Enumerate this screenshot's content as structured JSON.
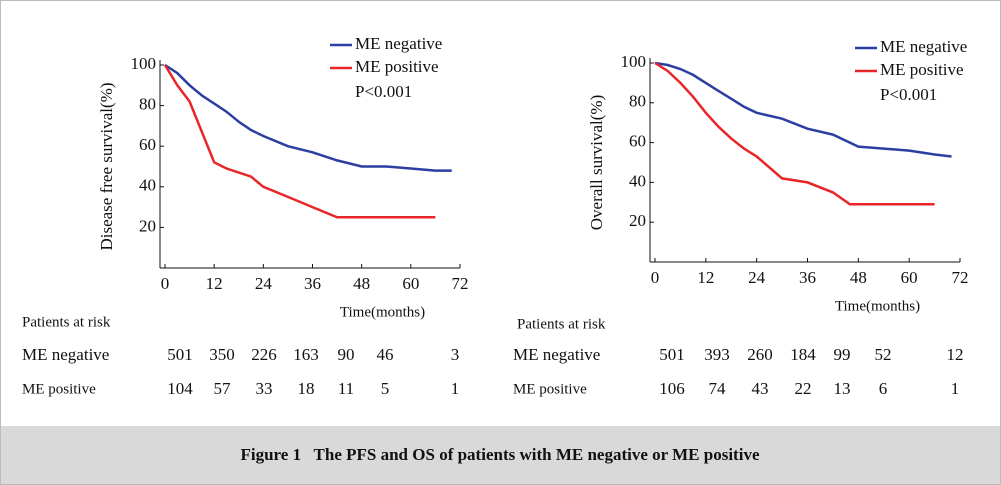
{
  "chart_data": [
    {
      "type": "line",
      "ylabel": "Disease free survival(%)",
      "xlabel": "Time(months)",
      "annotation": "P<0.001",
      "x": [
        0,
        3,
        6,
        9,
        12,
        15,
        18,
        21,
        24,
        30,
        36,
        42,
        48,
        54,
        60,
        66,
        70
      ],
      "series": [
        {
          "name": "ME negative",
          "color": "#2b3fa3",
          "values": [
            100,
            96,
            90,
            85,
            81,
            77,
            72,
            68,
            65,
            60,
            57,
            53,
            50,
            50,
            49,
            48,
            48
          ]
        },
        {
          "name": "ME positive",
          "color": "#e8262a",
          "values": [
            100,
            90,
            82,
            67,
            52,
            49,
            47,
            45,
            40,
            35,
            30,
            25,
            25,
            25,
            25,
            25,
            null
          ]
        }
      ],
      "xlim": [
        0,
        72
      ],
      "ylim": [
        0,
        100
      ],
      "xticks": [
        0,
        12,
        24,
        36,
        48,
        60,
        72
      ],
      "yticks": [
        20,
        40,
        60,
        80,
        100
      ]
    },
    {
      "type": "line",
      "ylabel": "Overall survival(%)",
      "xlabel": "Time(months)",
      "annotation": "P<0.001",
      "x": [
        0,
        3,
        6,
        9,
        12,
        15,
        18,
        21,
        24,
        30,
        36,
        42,
        46,
        48,
        54,
        60,
        66,
        70
      ],
      "series": [
        {
          "name": "ME negative",
          "color": "#2b3fa3",
          "values": [
            100,
            99,
            97,
            94,
            90,
            86,
            82,
            78,
            75,
            72,
            67,
            64,
            60,
            58,
            57,
            56,
            54,
            53
          ]
        },
        {
          "name": "ME positive",
          "color": "#e8262a",
          "values": [
            100,
            96,
            90,
            83,
            75,
            68,
            62,
            57,
            53,
            42,
            40,
            35,
            29,
            29,
            29,
            29,
            29,
            null
          ]
        }
      ],
      "xlim": [
        0,
        72
      ],
      "ylim": [
        0,
        100
      ],
      "xticks": [
        0,
        12,
        24,
        36,
        48,
        60,
        72
      ],
      "yticks": [
        20,
        40,
        60,
        80,
        100
      ]
    }
  ],
  "risk_tables": [
    {
      "header": "Patients at risk",
      "rows": [
        {
          "label": "ME negative",
          "values": [
            501,
            350,
            226,
            163,
            90,
            46,
            3
          ]
        },
        {
          "label": "ME positive",
          "values": [
            104,
            57,
            33,
            18,
            11,
            5,
            1
          ]
        }
      ]
    },
    {
      "header": "Patients at risk",
      "rows": [
        {
          "label": "ME negative",
          "values": [
            501,
            393,
            260,
            184,
            99,
            52,
            12
          ]
        },
        {
          "label": "ME positive",
          "values": [
            106,
            74,
            43,
            22,
            13,
            6,
            1
          ]
        }
      ]
    }
  ],
  "caption": "Figure 1   The PFS and OS of patients with ME negative or ME positive"
}
